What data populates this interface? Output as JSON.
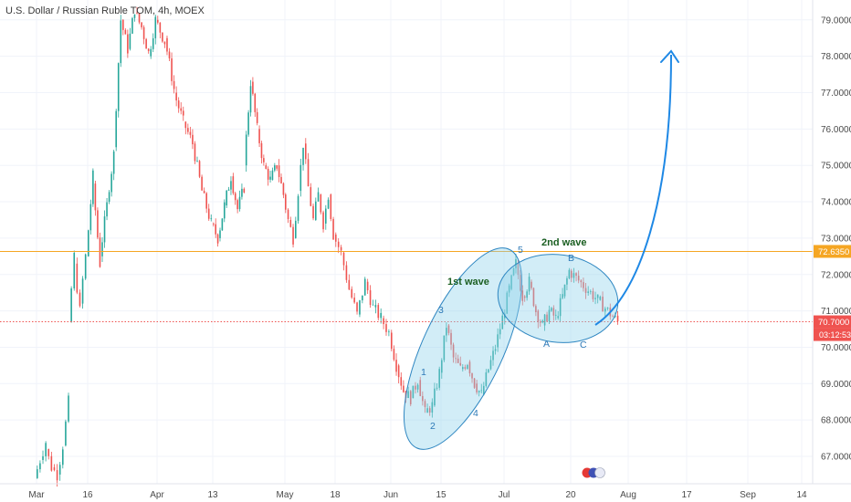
{
  "chart_data": {
    "type": "candlestick",
    "title": "U.S. Dollar / Russian Ruble TOM, 4h, MOEX",
    "x_tick_labels": [
      "Mar",
      "16",
      "Apr",
      "13",
      "May",
      "18",
      "Jun",
      "15",
      "Jul",
      "20",
      "Aug",
      "17",
      "Sep",
      "14"
    ],
    "y_tick_labels": [
      "67.0000",
      "68.0000",
      "69.0000",
      "70.0000",
      "71.0000",
      "72.0000",
      "73.0000",
      "74.0000",
      "75.0000",
      "76.0000",
      "77.0000",
      "78.0000",
      "79.0000"
    ],
    "ylim": [
      66.2,
      79.5
    ],
    "colors": {
      "up": "#26a69a",
      "down": "#ef5350",
      "ellipse_fill": "#8fd3ec",
      "ellipse_stroke": "#2e86c1",
      "arrow": "#1e88e5",
      "level_orange": "#f5a623",
      "level_red": "#ef5350"
    },
    "levels": [
      {
        "name": "level-72-6350",
        "value": 72.635,
        "label": "72.6350",
        "color": "#f5a623",
        "style": "solid"
      },
      {
        "name": "level-70-7000",
        "value": 70.7,
        "label": "70.7000",
        "color": "#ef5350",
        "style": "dotted"
      }
    ],
    "countdown": "03:12:53",
    "annotations": {
      "wave_titles": [
        {
          "name": "first-wave-label",
          "text": "1st wave"
        },
        {
          "name": "second-wave-label",
          "text": "2nd wave"
        }
      ],
      "wave_points": [
        {
          "name": "wave-point-1",
          "text": "1"
        },
        {
          "name": "wave-point-2",
          "text": "2"
        },
        {
          "name": "wave-point-3",
          "text": "3"
        },
        {
          "name": "wave-point-4",
          "text": "4"
        },
        {
          "name": "wave-point-5",
          "text": "5"
        },
        {
          "name": "wave-point-a",
          "text": "A"
        },
        {
          "name": "wave-point-b",
          "text": "B"
        },
        {
          "name": "wave-point-c",
          "text": "C"
        }
      ]
    },
    "ohlc_path": [
      {
        "label": "Mar",
        "open": 66.4,
        "close": 66.9
      },
      {
        "label": "Mar",
        "open": 66.9,
        "close": 67.4
      },
      {
        "label": "Mar",
        "open": 67.2,
        "close": 66.7
      },
      {
        "label": "Mar",
        "open": 66.7,
        "close": 66.5
      },
      {
        "label": "Mar",
        "open": 66.5,
        "close": 67.3
      },
      {
        "label": "Mar",
        "open": 67.3,
        "close": 68.5
      },
      {
        "label": "Mar",
        "open": 70.7,
        "close": 72.5
      },
      {
        "label": "Mar",
        "open": 72.3,
        "close": 71.0
      },
      {
        "label": "Mar",
        "open": 71.2,
        "close": 72.5
      },
      {
        "label": "16",
        "open": 72.5,
        "close": 74.7
      },
      {
        "label": "16",
        "open": 74.5,
        "close": 72.3
      },
      {
        "label": "16",
        "open": 72.5,
        "close": 73.9
      },
      {
        "label": "16",
        "open": 74.0,
        "close": 75.3
      },
      {
        "label": "16",
        "open": 75.5,
        "close": 79.0
      },
      {
        "label": "16",
        "open": 79.0,
        "close": 78.2
      },
      {
        "label": "16",
        "open": 78.2,
        "close": 79.3
      },
      {
        "label": "16",
        "open": 79.2,
        "close": 78.8
      },
      {
        "label": "16",
        "open": 78.8,
        "close": 78.1
      },
      {
        "label": "16",
        "open": 78.0,
        "close": 79.0
      },
      {
        "label": "Apr",
        "open": 79.0,
        "close": 78.4
      },
      {
        "label": "Apr",
        "open": 78.5,
        "close": 77.1
      },
      {
        "label": "Apr",
        "open": 77.0,
        "close": 76.2
      },
      {
        "label": "Apr",
        "open": 76.2,
        "close": 75.6
      },
      {
        "label": "Apr",
        "open": 75.6,
        "close": 74.3
      },
      {
        "label": "Apr",
        "open": 74.3,
        "close": 73.4
      },
      {
        "label": "13",
        "open": 73.4,
        "close": 73.0
      },
      {
        "label": "13",
        "open": 73.0,
        "close": 73.9
      },
      {
        "label": "13",
        "open": 73.9,
        "close": 74.7
      },
      {
        "label": "13",
        "open": 74.7,
        "close": 73.8
      },
      {
        "label": "13",
        "open": 73.8,
        "close": 74.4
      },
      {
        "label": "13",
        "open": 75.0,
        "close": 77.3
      },
      {
        "label": "13",
        "open": 77.3,
        "close": 76.0
      },
      {
        "label": "13",
        "open": 76.0,
        "close": 75.0
      },
      {
        "label": "13",
        "open": 75.0,
        "close": 74.6
      },
      {
        "label": "13",
        "open": 74.6,
        "close": 75.0
      },
      {
        "label": "13",
        "open": 75.0,
        "close": 74.2
      },
      {
        "label": "May",
        "open": 74.2,
        "close": 73.5
      },
      {
        "label": "May",
        "open": 73.5,
        "close": 73.0
      },
      {
        "label": "May",
        "open": 73.0,
        "close": 74.3
      },
      {
        "label": "May",
        "open": 74.3,
        "close": 75.6
      },
      {
        "label": "May",
        "open": 75.6,
        "close": 74.4
      },
      {
        "label": "May",
        "open": 74.4,
        "close": 73.5
      },
      {
        "label": "May",
        "open": 73.5,
        "close": 74.2
      },
      {
        "label": "May",
        "open": 74.2,
        "close": 73.4
      },
      {
        "label": "May",
        "open": 73.4,
        "close": 74.2
      },
      {
        "label": "May",
        "open": 74.2,
        "close": 73.1
      },
      {
        "label": "18",
        "open": 73.1,
        "close": 72.6
      },
      {
        "label": "18",
        "open": 72.6,
        "close": 71.6
      },
      {
        "label": "18",
        "open": 71.6,
        "close": 70.9
      },
      {
        "label": "18",
        "open": 70.9,
        "close": 71.8
      },
      {
        "label": "18",
        "open": 71.8,
        "close": 71.1
      },
      {
        "label": "18",
        "open": 71.1,
        "close": 70.8
      },
      {
        "label": "18",
        "open": 70.8,
        "close": 70.4
      },
      {
        "label": "Jun",
        "open": 70.4,
        "close": 69.5
      },
      {
        "label": "Jun",
        "open": 69.5,
        "close": 68.8
      },
      {
        "label": "Jun",
        "open": 68.8,
        "close": 68.6
      },
      {
        "label": "Jun",
        "open": 68.6,
        "close": 69.1
      },
      {
        "label": "Jun",
        "open": 69.1,
        "close": 68.2
      },
      {
        "label": "Jun",
        "open": 68.2,
        "close": 68.4
      },
      {
        "label": "Jun",
        "open": 68.4,
        "close": 69.3
      },
      {
        "label": "15",
        "open": 69.3,
        "close": 70.6
      },
      {
        "label": "15",
        "open": 70.6,
        "close": 69.7
      },
      {
        "label": "15",
        "open": 69.7,
        "close": 69.4
      },
      {
        "label": "15",
        "open": 69.4,
        "close": 69.6
      },
      {
        "label": "15",
        "open": 69.6,
        "close": 69.0
      },
      {
        "label": "15",
        "open": 69.0,
        "close": 68.7
      },
      {
        "label": "15",
        "open": 68.7,
        "close": 69.4
      },
      {
        "label": "15",
        "open": 69.4,
        "close": 70.0
      },
      {
        "label": "15",
        "open": 70.0,
        "close": 70.8
      },
      {
        "label": "Jul",
        "open": 70.8,
        "close": 71.6
      },
      {
        "label": "Jul",
        "open": 71.6,
        "close": 72.3
      },
      {
        "label": "Jul",
        "open": 72.3,
        "close": 71.4
      },
      {
        "label": "Jul",
        "open": 71.4,
        "close": 71.8
      },
      {
        "label": "Jul",
        "open": 71.8,
        "close": 71.0
      },
      {
        "label": "Jul",
        "open": 71.0,
        "close": 70.6
      },
      {
        "label": "Jul",
        "open": 70.6,
        "close": 71.0
      },
      {
        "label": "Jul",
        "open": 71.0,
        "close": 70.8
      },
      {
        "label": "Jul",
        "open": 70.8,
        "close": 71.4
      },
      {
        "label": "Jul",
        "open": 71.4,
        "close": 72.1
      },
      {
        "label": "20",
        "open": 72.1,
        "close": 71.3
      },
      {
        "label": "20",
        "open": 71.3,
        "close": 70.7
      }
    ]
  }
}
